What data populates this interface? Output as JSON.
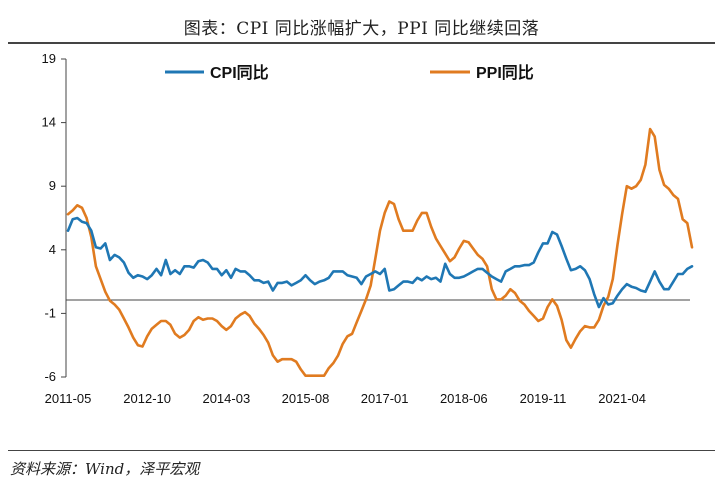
{
  "title": "图表：CPI 同比涨幅扩大，PPI 同比继续回落",
  "source": "资料来源：Wind，泽平宏观",
  "colors": {
    "cpi": "#1f77b4",
    "ppi": "#e07b20",
    "axis": "#444444"
  },
  "chart_data": {
    "type": "line",
    "title": "图表：CPI 同比涨幅扩大，PPI 同比继续回落",
    "ylim": [
      -6,
      19
    ],
    "yticks": [
      -6,
      -1,
      4,
      9,
      14,
      19
    ],
    "xticks": [
      "2011-05",
      "2012-10",
      "2014-03",
      "2015-08",
      "2017-01",
      "2018-06",
      "2019-11",
      "2021-04"
    ],
    "x_start": "2011-05",
    "x_end": "2022-06",
    "legend_position": "top",
    "grid": false,
    "series": [
      {
        "name": "CPI同比",
        "color": "#1f77b4",
        "points": [
          [
            "2011-05",
            5.5
          ],
          [
            "2011-06",
            6.4
          ],
          [
            "2011-07",
            6.5
          ],
          [
            "2011-08",
            6.2
          ],
          [
            "2011-09",
            6.1
          ],
          [
            "2011-10",
            5.5
          ],
          [
            "2011-11",
            4.2
          ],
          [
            "2011-12",
            4.1
          ],
          [
            "2012-01",
            4.5
          ],
          [
            "2012-02",
            3.2
          ],
          [
            "2012-03",
            3.6
          ],
          [
            "2012-04",
            3.4
          ],
          [
            "2012-05",
            3.0
          ],
          [
            "2012-06",
            2.2
          ],
          [
            "2012-07",
            1.8
          ],
          [
            "2012-08",
            2.0
          ],
          [
            "2012-09",
            1.9
          ],
          [
            "2012-10",
            1.7
          ],
          [
            "2012-11",
            2.0
          ],
          [
            "2012-12",
            2.5
          ],
          [
            "2013-01",
            2.0
          ],
          [
            "2013-02",
            3.2
          ],
          [
            "2013-03",
            2.1
          ],
          [
            "2013-04",
            2.4
          ],
          [
            "2013-05",
            2.1
          ],
          [
            "2013-06",
            2.7
          ],
          [
            "2013-07",
            2.7
          ],
          [
            "2013-08",
            2.6
          ],
          [
            "2013-09",
            3.1
          ],
          [
            "2013-10",
            3.2
          ],
          [
            "2013-11",
            3.0
          ],
          [
            "2013-12",
            2.5
          ],
          [
            "2014-01",
            2.5
          ],
          [
            "2014-02",
            2.0
          ],
          [
            "2014-03",
            2.4
          ],
          [
            "2014-04",
            1.8
          ],
          [
            "2014-05",
            2.5
          ],
          [
            "2014-06",
            2.3
          ],
          [
            "2014-07",
            2.3
          ],
          [
            "2014-08",
            2.0
          ],
          [
            "2014-09",
            1.6
          ],
          [
            "2014-10",
            1.6
          ],
          [
            "2014-11",
            1.4
          ],
          [
            "2014-12",
            1.5
          ],
          [
            "2015-01",
            0.8
          ],
          [
            "2015-02",
            1.4
          ],
          [
            "2015-03",
            1.4
          ],
          [
            "2015-04",
            1.5
          ],
          [
            "2015-05",
            1.2
          ],
          [
            "2015-06",
            1.4
          ],
          [
            "2015-07",
            1.6
          ],
          [
            "2015-08",
            2.0
          ],
          [
            "2015-09",
            1.6
          ],
          [
            "2015-10",
            1.3
          ],
          [
            "2015-11",
            1.5
          ],
          [
            "2015-12",
            1.6
          ],
          [
            "2016-01",
            1.8
          ],
          [
            "2016-02",
            2.3
          ],
          [
            "2016-03",
            2.3
          ],
          [
            "2016-04",
            2.3
          ],
          [
            "2016-05",
            2.0
          ],
          [
            "2016-06",
            1.9
          ],
          [
            "2016-07",
            1.8
          ],
          [
            "2016-08",
            1.3
          ],
          [
            "2016-09",
            1.9
          ],
          [
            "2016-10",
            2.1
          ],
          [
            "2016-11",
            2.3
          ],
          [
            "2016-12",
            2.1
          ],
          [
            "2017-01",
            2.5
          ],
          [
            "2017-02",
            0.8
          ],
          [
            "2017-03",
            0.9
          ],
          [
            "2017-04",
            1.2
          ],
          [
            "2017-05",
            1.5
          ],
          [
            "2017-06",
            1.5
          ],
          [
            "2017-07",
            1.4
          ],
          [
            "2017-08",
            1.8
          ],
          [
            "2017-09",
            1.6
          ],
          [
            "2017-10",
            1.9
          ],
          [
            "2017-11",
            1.7
          ],
          [
            "2017-12",
            1.8
          ],
          [
            "2018-01",
            1.5
          ],
          [
            "2018-02",
            2.9
          ],
          [
            "2018-03",
            2.1
          ],
          [
            "2018-04",
            1.8
          ],
          [
            "2018-05",
            1.8
          ],
          [
            "2018-06",
            1.9
          ],
          [
            "2018-07",
            2.1
          ],
          [
            "2018-08",
            2.3
          ],
          [
            "2018-09",
            2.5
          ],
          [
            "2018-10",
            2.5
          ],
          [
            "2018-11",
            2.2
          ],
          [
            "2018-12",
            1.9
          ],
          [
            "2019-01",
            1.7
          ],
          [
            "2019-02",
            1.5
          ],
          [
            "2019-03",
            2.3
          ],
          [
            "2019-04",
            2.5
          ],
          [
            "2019-05",
            2.7
          ],
          [
            "2019-06",
            2.7
          ],
          [
            "2019-07",
            2.8
          ],
          [
            "2019-08",
            2.8
          ],
          [
            "2019-09",
            3.0
          ],
          [
            "2019-10",
            3.8
          ],
          [
            "2019-11",
            4.5
          ],
          [
            "2019-12",
            4.5
          ],
          [
            "2020-01",
            5.4
          ],
          [
            "2020-02",
            5.2
          ],
          [
            "2020-03",
            4.3
          ],
          [
            "2020-04",
            3.3
          ],
          [
            "2020-05",
            2.4
          ],
          [
            "2020-06",
            2.5
          ],
          [
            "2020-07",
            2.7
          ],
          [
            "2020-08",
            2.4
          ],
          [
            "2020-09",
            1.7
          ],
          [
            "2020-10",
            0.5
          ],
          [
            "2020-11",
            -0.5
          ],
          [
            "2020-12",
            0.2
          ],
          [
            "2021-01",
            -0.3
          ],
          [
            "2021-02",
            -0.2
          ],
          [
            "2021-03",
            0.4
          ],
          [
            "2021-04",
            0.9
          ],
          [
            "2021-05",
            1.3
          ],
          [
            "2021-06",
            1.1
          ],
          [
            "2021-07",
            1.0
          ],
          [
            "2021-08",
            0.8
          ],
          [
            "2021-09",
            0.7
          ],
          [
            "2021-10",
            1.5
          ],
          [
            "2021-11",
            2.3
          ],
          [
            "2021-12",
            1.5
          ],
          [
            "2022-01",
            0.9
          ],
          [
            "2022-02",
            0.9
          ],
          [
            "2022-03",
            1.5
          ],
          [
            "2022-04",
            2.1
          ],
          [
            "2022-05",
            2.1
          ],
          [
            "2022-06",
            2.5
          ],
          [
            "2022-07",
            2.7
          ]
        ]
      },
      {
        "name": "PPI同比",
        "color": "#e07b20",
        "points": [
          [
            "2011-05",
            6.8
          ],
          [
            "2011-06",
            7.1
          ],
          [
            "2011-07",
            7.5
          ],
          [
            "2011-08",
            7.3
          ],
          [
            "2011-09",
            6.5
          ],
          [
            "2011-10",
            5.0
          ],
          [
            "2011-11",
            2.7
          ],
          [
            "2011-12",
            1.7
          ],
          [
            "2012-01",
            0.7
          ],
          [
            "2012-02",
            0.0
          ],
          [
            "2012-03",
            -0.3
          ],
          [
            "2012-04",
            -0.7
          ],
          [
            "2012-05",
            -1.4
          ],
          [
            "2012-06",
            -2.1
          ],
          [
            "2012-07",
            -2.9
          ],
          [
            "2012-08",
            -3.5
          ],
          [
            "2012-09",
            -3.6
          ],
          [
            "2012-10",
            -2.8
          ],
          [
            "2012-11",
            -2.2
          ],
          [
            "2012-12",
            -1.9
          ],
          [
            "2013-01",
            -1.6
          ],
          [
            "2013-02",
            -1.6
          ],
          [
            "2013-03",
            -1.9
          ],
          [
            "2013-04",
            -2.6
          ],
          [
            "2013-05",
            -2.9
          ],
          [
            "2013-06",
            -2.7
          ],
          [
            "2013-07",
            -2.3
          ],
          [
            "2013-08",
            -1.6
          ],
          [
            "2013-09",
            -1.3
          ],
          [
            "2013-10",
            -1.5
          ],
          [
            "2013-11",
            -1.4
          ],
          [
            "2013-12",
            -1.4
          ],
          [
            "2014-01",
            -1.6
          ],
          [
            "2014-02",
            -2.0
          ],
          [
            "2014-03",
            -2.3
          ],
          [
            "2014-04",
            -2.0
          ],
          [
            "2014-05",
            -1.4
          ],
          [
            "2014-06",
            -1.1
          ],
          [
            "2014-07",
            -0.9
          ],
          [
            "2014-08",
            -1.2
          ],
          [
            "2014-09",
            -1.8
          ],
          [
            "2014-10",
            -2.2
          ],
          [
            "2014-11",
            -2.7
          ],
          [
            "2014-12",
            -3.3
          ],
          [
            "2015-01",
            -4.3
          ],
          [
            "2015-02",
            -4.8
          ],
          [
            "2015-03",
            -4.6
          ],
          [
            "2015-04",
            -4.6
          ],
          [
            "2015-05",
            -4.6
          ],
          [
            "2015-06",
            -4.8
          ],
          [
            "2015-07",
            -5.4
          ],
          [
            "2015-08",
            -5.9
          ],
          [
            "2015-09",
            -5.9
          ],
          [
            "2015-10",
            -5.9
          ],
          [
            "2015-11",
            -5.9
          ],
          [
            "2015-12",
            -5.9
          ],
          [
            "2016-01",
            -5.3
          ],
          [
            "2016-02",
            -4.9
          ],
          [
            "2016-03",
            -4.3
          ],
          [
            "2016-04",
            -3.4
          ],
          [
            "2016-05",
            -2.8
          ],
          [
            "2016-06",
            -2.6
          ],
          [
            "2016-07",
            -1.7
          ],
          [
            "2016-08",
            -0.8
          ],
          [
            "2016-09",
            0.1
          ],
          [
            "2016-10",
            1.2
          ],
          [
            "2016-11",
            3.3
          ],
          [
            "2016-12",
            5.5
          ],
          [
            "2017-01",
            6.9
          ],
          [
            "2017-02",
            7.8
          ],
          [
            "2017-03",
            7.6
          ],
          [
            "2017-04",
            6.4
          ],
          [
            "2017-05",
            5.5
          ],
          [
            "2017-06",
            5.5
          ],
          [
            "2017-07",
            5.5
          ],
          [
            "2017-08",
            6.3
          ],
          [
            "2017-09",
            6.9
          ],
          [
            "2017-10",
            6.9
          ],
          [
            "2017-11",
            5.8
          ],
          [
            "2017-12",
            4.9
          ],
          [
            "2018-01",
            4.3
          ],
          [
            "2018-02",
            3.7
          ],
          [
            "2018-03",
            3.1
          ],
          [
            "2018-04",
            3.4
          ],
          [
            "2018-05",
            4.1
          ],
          [
            "2018-06",
            4.7
          ],
          [
            "2018-07",
            4.6
          ],
          [
            "2018-08",
            4.1
          ],
          [
            "2018-09",
            3.6
          ],
          [
            "2018-10",
            3.3
          ],
          [
            "2018-11",
            2.7
          ],
          [
            "2018-12",
            0.9
          ],
          [
            "2019-01",
            0.1
          ],
          [
            "2019-02",
            0.1
          ],
          [
            "2019-03",
            0.4
          ],
          [
            "2019-04",
            0.9
          ],
          [
            "2019-05",
            0.6
          ],
          [
            "2019-06",
            0.0
          ],
          [
            "2019-07",
            -0.3
          ],
          [
            "2019-08",
            -0.8
          ],
          [
            "2019-09",
            -1.2
          ],
          [
            "2019-10",
            -1.6
          ],
          [
            "2019-11",
            -1.4
          ],
          [
            "2019-12",
            -0.5
          ],
          [
            "2020-01",
            0.1
          ],
          [
            "2020-02",
            -0.4
          ],
          [
            "2020-03",
            -1.5
          ],
          [
            "2020-04",
            -3.1
          ],
          [
            "2020-05",
            -3.7
          ],
          [
            "2020-06",
            -3.0
          ],
          [
            "2020-07",
            -2.4
          ],
          [
            "2020-08",
            -2.0
          ],
          [
            "2020-09",
            -2.1
          ],
          [
            "2020-10",
            -2.1
          ],
          [
            "2020-11",
            -1.5
          ],
          [
            "2020-12",
            -0.4
          ],
          [
            "2021-01",
            0.3
          ],
          [
            "2021-02",
            1.7
          ],
          [
            "2021-03",
            4.4
          ],
          [
            "2021-04",
            6.8
          ],
          [
            "2021-05",
            9.0
          ],
          [
            "2021-06",
            8.8
          ],
          [
            "2021-07",
            9.0
          ],
          [
            "2021-08",
            9.5
          ],
          [
            "2021-09",
            10.7
          ],
          [
            "2021-10",
            13.5
          ],
          [
            "2021-11",
            12.9
          ],
          [
            "2021-12",
            10.3
          ],
          [
            "2022-01",
            9.1
          ],
          [
            "2022-02",
            8.8
          ],
          [
            "2022-03",
            8.3
          ],
          [
            "2022-04",
            8.0
          ],
          [
            "2022-05",
            6.4
          ],
          [
            "2022-06",
            6.1
          ],
          [
            "2022-07",
            4.2
          ]
        ]
      }
    ]
  }
}
